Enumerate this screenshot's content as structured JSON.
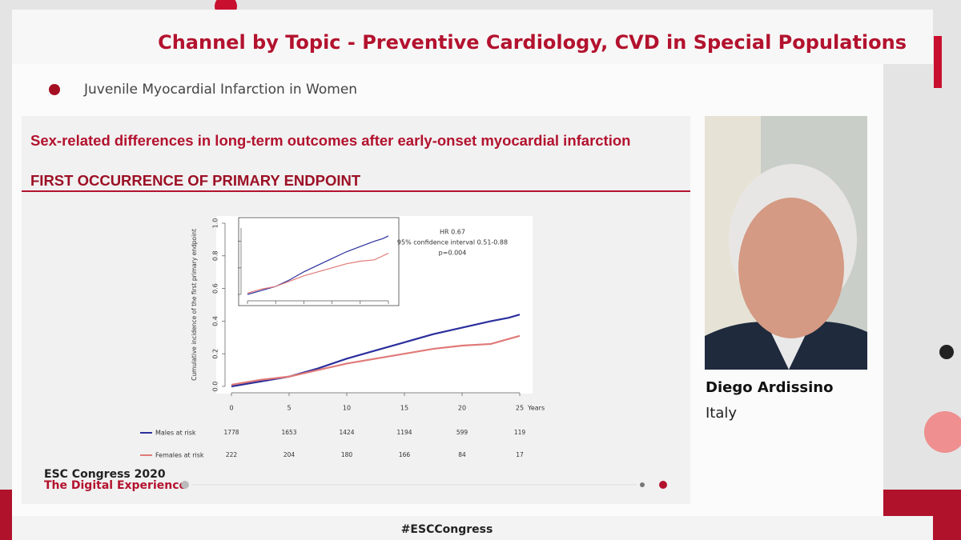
{
  "header": {
    "title": "Channel by Topic - Preventive Cardiology, CVD in Special Populations"
  },
  "slide": {
    "section": "Juvenile Myocardial Infarction in Women",
    "title": "Sex-related differences in long-term outcomes after early-onset myocardial infarction",
    "subtitle": "FIRST OCCURRENCE OF PRIMARY ENDPOINT",
    "footer": [
      "ESC Congress 2020",
      "The Digital Experience"
    ]
  },
  "speaker": {
    "name": "Diego Ardissino",
    "country": "Italy"
  },
  "hashtag": "#ESCCongress",
  "chart_data": {
    "type": "line",
    "y_label": "Cumulative incidence of the first primary endpoint",
    "x_label": "Years",
    "annotations": [
      "HR 0.67",
      "95% confidence interval 0.51-0.88",
      "p=0.004"
    ],
    "x": [
      0,
      2.5,
      5,
      7.5,
      10,
      12.5,
      15,
      17.5,
      20,
      22.5,
      24,
      25
    ],
    "series": [
      {
        "name": "Males at risk",
        "color": "#2b2f9c",
        "values": [
          0.0,
          0.03,
          0.06,
          0.11,
          0.17,
          0.22,
          0.27,
          0.32,
          0.36,
          0.4,
          0.42,
          0.44
        ],
        "at_risk": [
          1778,
          1653,
          1424,
          1194,
          599,
          119
        ]
      },
      {
        "name": "Females at risk",
        "color": "#e07a78",
        "values": [
          0.01,
          0.04,
          0.06,
          0.1,
          0.14,
          0.17,
          0.2,
          0.23,
          0.25,
          0.26,
          0.29,
          0.31
        ],
        "at_risk": [
          222,
          204,
          180,
          166,
          84,
          17
        ]
      }
    ],
    "xlim": [
      0,
      25
    ],
    "ylim": [
      0,
      1
    ],
    "xticks": [
      0,
      5,
      10,
      15,
      20,
      25
    ],
    "yticks": [
      {
        "value": 0,
        "label": "0.0"
      },
      0.2,
      0.4,
      0.6,
      0.8,
      {
        "value": 1,
        "label": "1.0"
      }
    ],
    "inset": {
      "xlim": [
        0,
        25
      ],
      "ylim": [
        0,
        0.5
      ]
    },
    "grid": false
  }
}
